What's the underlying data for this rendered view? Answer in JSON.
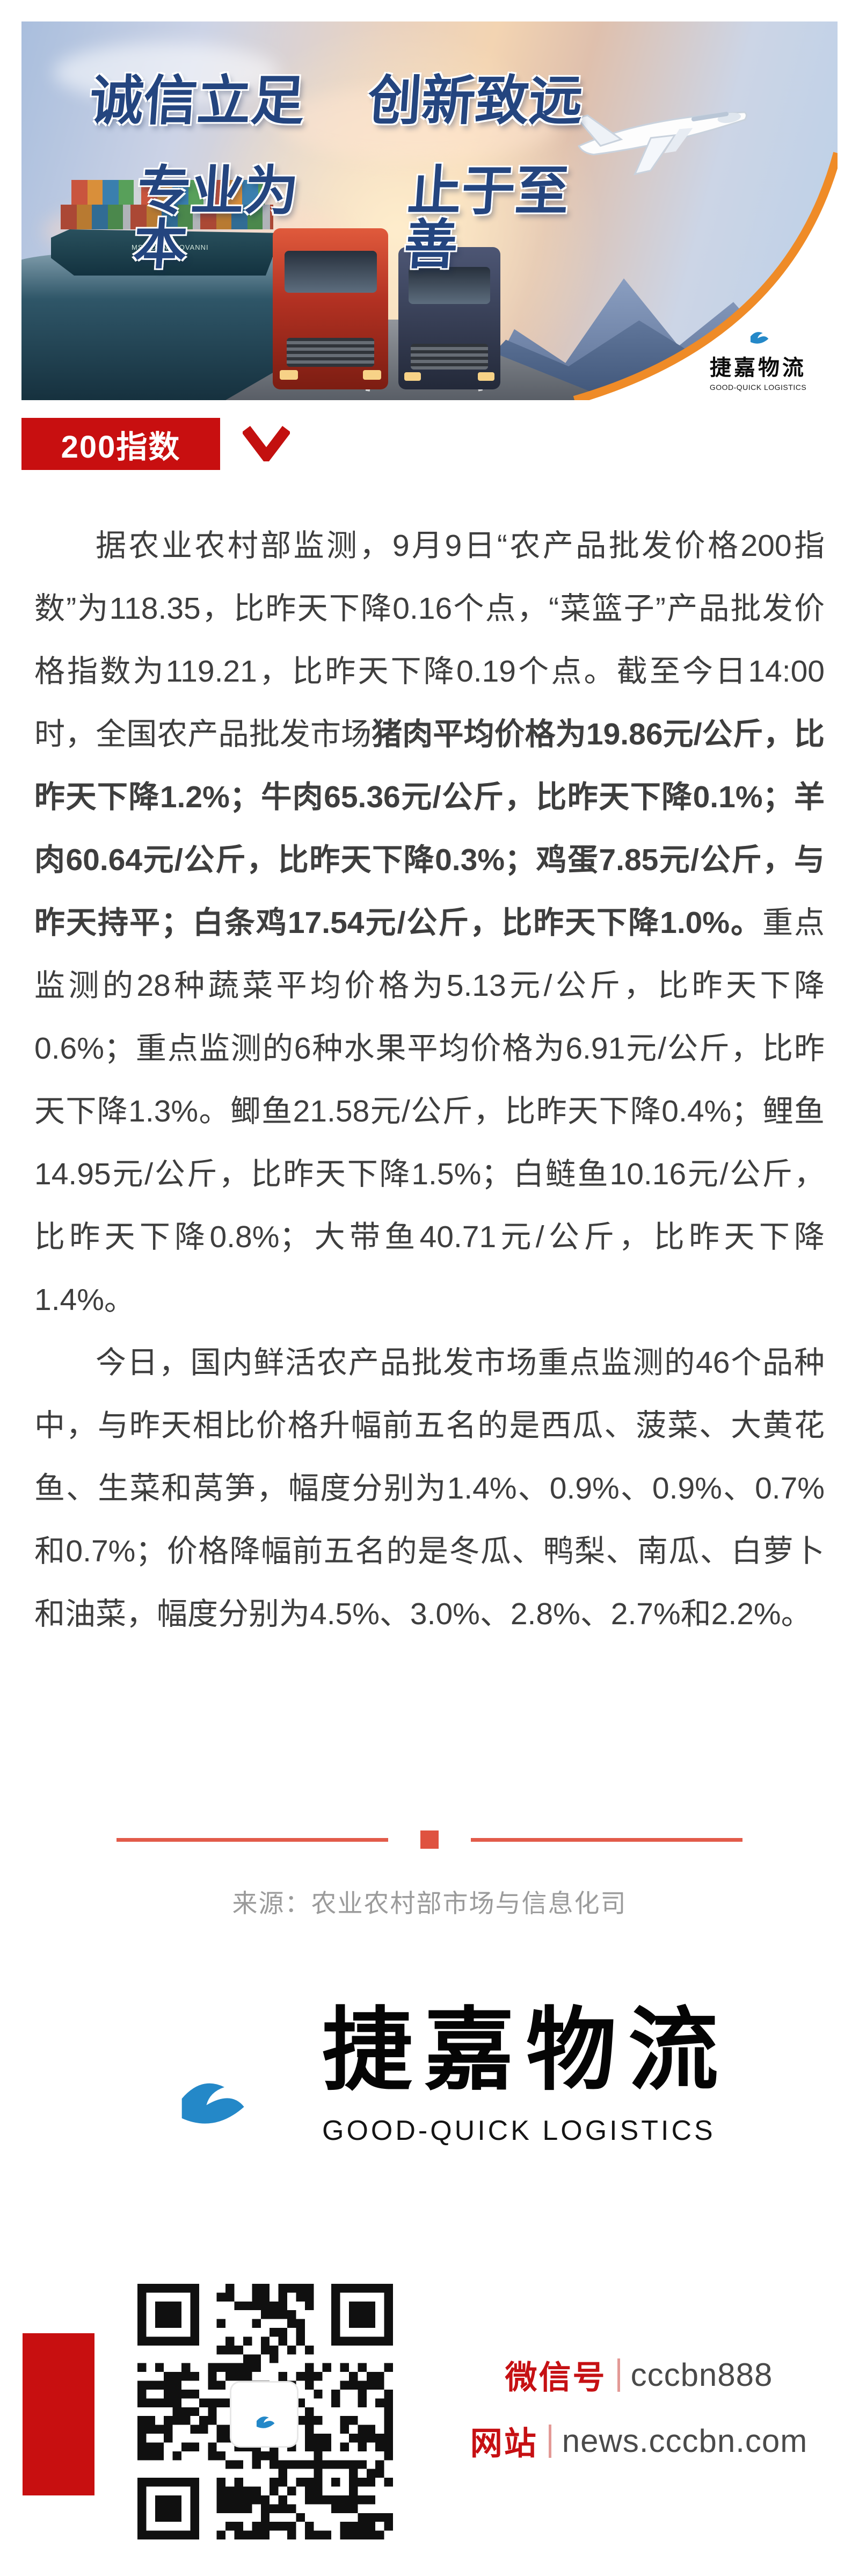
{
  "banner": {
    "slogan1_left": "诚信立足",
    "slogan1_right": "创新致远",
    "slogan2_left": "专业为本",
    "slogan2_right": "止于至善",
    "ship_name": "MSC DON GIOVANNI",
    "logo_cn": "捷嘉物流",
    "logo_en": "GOOD-QUICK LOGISTICS"
  },
  "section_badge": {
    "label": "200指数"
  },
  "article": {
    "p1_pre": "据农业农村部监测，9月9日“农产品批发价格200指数”为118.35，比昨天下降0.16个点，“菜篮子”产品批发价格指数为119.21，比昨天下降0.19个点。截至今日14:00时，全国农产品批发市场",
    "p1_bold": "猪肉平均价格为19.86元/公斤，比昨天下降1.2%；牛肉65.36元/公斤，比昨天下降0.1%；羊肉60.64元/公斤，比昨天下降0.3%；鸡蛋7.85元/公斤，与昨天持平；白条鸡17.54元/公斤，比昨天下降1.0%。",
    "p1_post": "重点监测的28种蔬菜平均价格为5.13元/公斤，比昨天下降0.6%；重点监测的6种水果平均价格为6.91元/公斤，比昨天下降1.3%。鲫鱼21.58元/公斤，比昨天下降0.4%；鲤鱼14.95元/公斤，比昨天下降1.5%；白鲢鱼10.16元/公斤，比昨天下降0.8%；大带鱼40.71元/公斤，比昨天下降1.4%。",
    "p2": "今日，国内鲜活农产品批发市场重点监测的46个品种中，与昨天相比价格升幅前五名的是西瓜、菠菜、大黄花鱼、生菜和莴笋，幅度分别为1.4%、0.9%、0.9%、0.7%和0.7%；价格降幅前五名的是冬瓜、鸭梨、南瓜、白萝卜和油菜，幅度分别为4.5%、3.0%、2.8%、2.7%和2.2%。"
  },
  "source": {
    "text": "来源：农业农村部市场与信息化司"
  },
  "footer_logo": {
    "cn": "捷嘉物流",
    "en": "GOOD-QUICK LOGISTICS"
  },
  "contact": {
    "wechat_label": "微信号",
    "wechat_value": "cccbn888",
    "site_label": "网站",
    "site_value": "news.cccbn.com"
  },
  "colors": {
    "accent_red": "#c80f10",
    "divider_salmon": "#e25b4a",
    "source_gray": "#9b9b9b",
    "body_text": "#3e3e3e",
    "swoosh_orange": "#ef8b27",
    "logo_green": "#5bb53a",
    "logo_blue": "#1a64a8",
    "slogan_navy": "#24457f"
  }
}
